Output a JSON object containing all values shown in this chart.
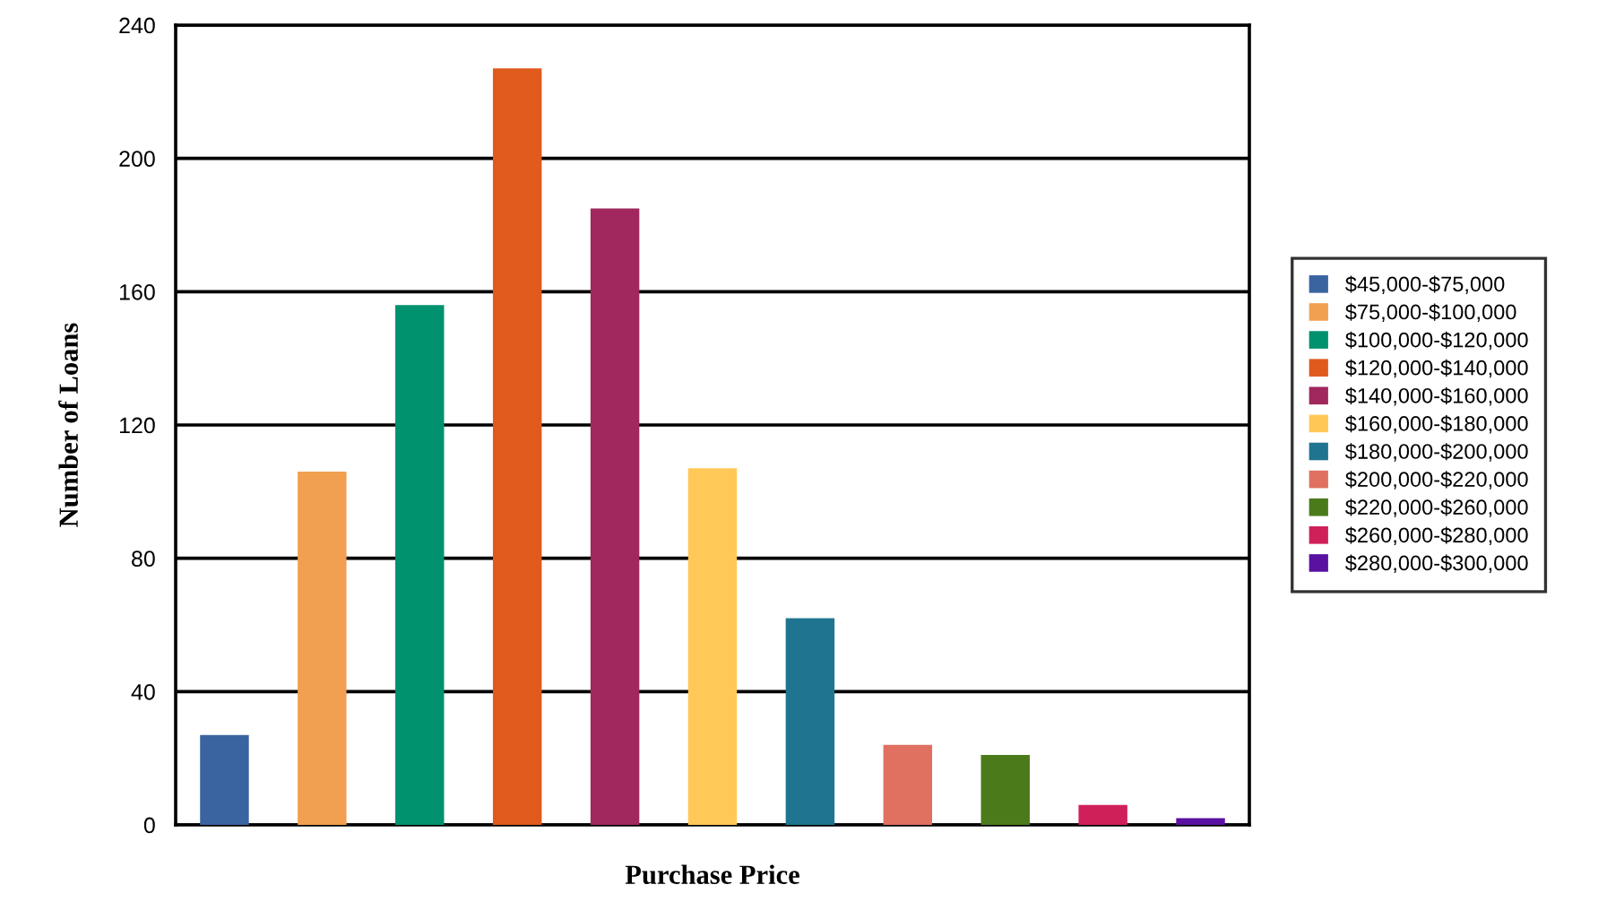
{
  "chart_data": {
    "type": "bar",
    "xlabel": "Purchase Price",
    "ylabel": "Number of Loans",
    "categories": [
      null,
      null,
      null,
      null,
      null,
      null,
      null,
      null,
      null,
      null,
      null
    ],
    "series": [
      {
        "name": "$45,000-$75,000",
        "color": "#3a64a0",
        "values": [
          27,
          null,
          null,
          null,
          null,
          null,
          null,
          null,
          null,
          null,
          null
        ]
      },
      {
        "name": "$75,000-$100,000",
        "color": "#f0a050",
        "values": [
          null,
          106,
          null,
          null,
          null,
          null,
          null,
          null,
          null,
          null,
          null
        ]
      },
      {
        "name": "$100,000-$120,000",
        "color": "#00916e",
        "values": [
          null,
          null,
          156,
          null,
          null,
          null,
          null,
          null,
          null,
          null,
          null
        ]
      },
      {
        "name": "$120,000-$140,000",
        "color": "#e05a1e",
        "values": [
          null,
          null,
          null,
          227,
          null,
          null,
          null,
          null,
          null,
          null,
          null
        ]
      },
      {
        "name": "$140,000-$160,000",
        "color": "#a0285e",
        "values": [
          null,
          null,
          null,
          null,
          185,
          null,
          null,
          null,
          null,
          null,
          null
        ]
      },
      {
        "name": "$160,000-$180,000",
        "color": "#ffc857",
        "values": [
          null,
          null,
          null,
          null,
          null,
          107,
          null,
          null,
          null,
          null,
          null
        ]
      },
      {
        "name": "$180,000-$200,000",
        "color": "#1f7490",
        "values": [
          null,
          null,
          null,
          null,
          null,
          null,
          62,
          null,
          null,
          null,
          null
        ]
      },
      {
        "name": "$200,000-$220,000",
        "color": "#e07060",
        "values": [
          null,
          null,
          null,
          null,
          null,
          null,
          null,
          24,
          null,
          null,
          null
        ]
      },
      {
        "name": "$220,000-$260,000",
        "color": "#4a7a1a",
        "values": [
          null,
          null,
          null,
          null,
          null,
          null,
          null,
          null,
          21,
          null,
          null
        ]
      },
      {
        "name": "$260,000-$280,000",
        "color": "#d0205a",
        "values": [
          null,
          null,
          null,
          null,
          null,
          null,
          null,
          null,
          null,
          6,
          null
        ]
      },
      {
        "name": "$280,000-$300,000",
        "color": "#5a10a0",
        "values": [
          null,
          null,
          null,
          null,
          null,
          null,
          null,
          null,
          null,
          null,
          2
        ]
      }
    ],
    "ylim": [
      0,
      240
    ],
    "yticks": [
      0,
      40,
      80,
      120,
      160,
      200,
      240
    ],
    "grid": "y",
    "legend": "right",
    "tick_labels": "y"
  }
}
